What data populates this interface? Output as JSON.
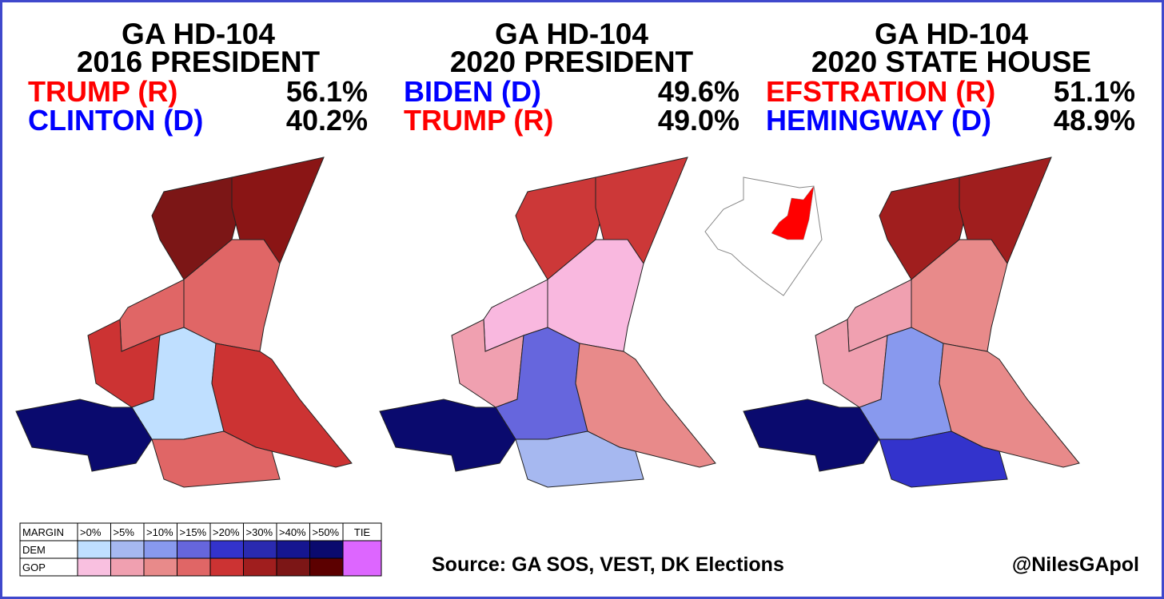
{
  "panels": [
    {
      "title": "GA HD-104",
      "subtitle": "2016 PRESIDENT",
      "rows": [
        {
          "name": "TRUMP (R)",
          "pct": "56.1%",
          "color": "#ff0000"
        },
        {
          "name": "CLINTON (D)",
          "pct": "40.2%",
          "color": "#0000ff"
        }
      ]
    },
    {
      "title": "GA HD-104",
      "subtitle": "2020 PRESIDENT",
      "rows": [
        {
          "name": "BIDEN (D)",
          "pct": "49.6%",
          "color": "#0000ff"
        },
        {
          "name": "TRUMP (R)",
          "pct": "49.0%",
          "color": "#ff0000"
        }
      ]
    },
    {
      "title": "GA HD-104",
      "subtitle": "2020 STATE HOUSE",
      "rows": [
        {
          "name": "EFSTRATION (R)",
          "pct": "51.1%",
          "color": "#ff0000"
        },
        {
          "name": "HEMINGWAY (D)",
          "pct": "48.9%",
          "color": "#0000ff"
        }
      ]
    }
  ],
  "legend": {
    "header": [
      "MARGIN",
      ">0%",
      ">5%",
      ">10%",
      ">15%",
      ">20%",
      ">30%",
      ">40%",
      ">50%",
      "TIE"
    ],
    "rows": [
      {
        "name": "DEM",
        "colors": [
          "#bfdfff",
          "#a6b8f0",
          "#8899ee",
          "#6666dd",
          "#3333cc",
          "#2a2ab0",
          "#161690",
          "#0a0a6e"
        ]
      },
      {
        "name": "GOP",
        "colors": [
          "#f9c0e0",
          "#f0a0b0",
          "#e88a8a",
          "#e06666",
          "#cc3333",
          "#a01e1e",
          "#7c1616",
          "#5c0000"
        ]
      }
    ],
    "tie_color": "#dd66ff"
  },
  "source": "Source: GA SOS, VEST, DK Elections",
  "handle": "@NilesGApol"
}
